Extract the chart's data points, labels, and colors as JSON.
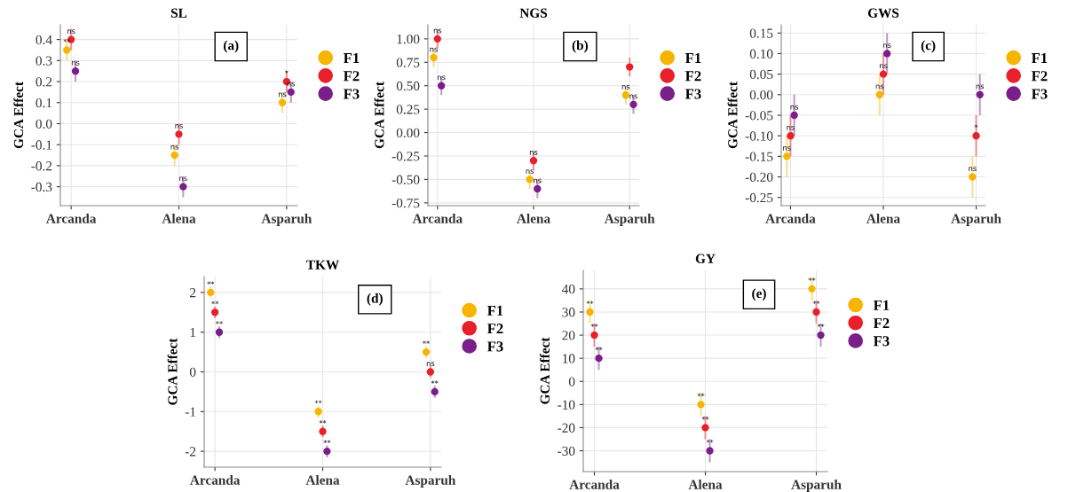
{
  "chart_data": [
    {
      "type": "scatter",
      "title": "SL",
      "ylabel": "GCA Effect",
      "categories": [
        "Arcanda",
        "Alena",
        "Asparuh"
      ],
      "ylim": [
        -0.39,
        0.47
      ],
      "yticks": [
        -0.3,
        -0.2,
        -0.1,
        {
          "value": 0,
          "label": "0.0"
        },
        0.1,
        0.2,
        0.3,
        0.4
      ],
      "grid": true,
      "legend": "right",
      "marker": "circle",
      "series": [
        {
          "name": "F1",
          "color": "#f7b500",
          "values": [
            0.35,
            -0.15,
            0.1
          ],
          "errors": [
            0.05,
            0.05,
            0.05
          ]
        },
        {
          "name": "F2",
          "color": "#e8202a",
          "values": [
            0.4,
            -0.05,
            0.2
          ],
          "errors": [
            0.05,
            0.05,
            0.05
          ]
        },
        {
          "name": "F3",
          "color": "#7a1f8a",
          "values": [
            0.25,
            -0.3,
            0.15
          ],
          "errors": [
            0.05,
            0.05,
            0.05
          ]
        }
      ],
      "annotations": [
        "(a)",
        {
          "text": "**",
          "x": "Arcanda",
          "y": 0.35
        },
        {
          "text": "ns",
          "x": "Arcanda",
          "y": 0.4
        },
        {
          "text": "ns",
          "x": "Arcanda",
          "y": 0.25
        },
        {
          "text": "ns",
          "x": "Alena",
          "y": -0.15
        },
        {
          "text": "ns",
          "x": "Alena",
          "y": -0.05
        },
        {
          "text": "ns",
          "x": "Alena",
          "y": -0.3
        },
        {
          "text": "ns",
          "x": "Asparuh",
          "y": 0.1
        },
        {
          "text": "*",
          "x": "Asparuh",
          "y": 0.2
        },
        {
          "text": "ns",
          "x": "Asparuh",
          "y": 0.15
        }
      ]
    },
    {
      "type": "scatter",
      "title": "NGS",
      "ylabel": "GCA Effect",
      "categories": [
        "Arcanda",
        "Alena",
        "Asparuh"
      ],
      "ylim": [
        -0.78,
        1.15
      ],
      "yticks": [
        -0.75,
        {
          "value": -0.5,
          "label": "-0.50"
        },
        -0.25,
        {
          "value": 0,
          "label": "0.00"
        },
        0.25,
        {
          "value": 0.5,
          "label": "0.50"
        },
        0.75,
        {
          "value": 1,
          "label": "1.00"
        }
      ],
      "grid": true,
      "legend": "right",
      "marker": "circle",
      "series": [
        {
          "name": "F1",
          "color": "#f7b500",
          "values": [
            0.8,
            -0.5,
            0.4
          ],
          "errors": [
            0.1,
            0.1,
            0.1
          ]
        },
        {
          "name": "F2",
          "color": "#e8202a",
          "values": [
            1.0,
            -0.3,
            0.7
          ],
          "errors": [
            0.1,
            0.1,
            0.1
          ]
        },
        {
          "name": "F3",
          "color": "#7a1f8a",
          "values": [
            0.5,
            -0.6,
            0.3
          ],
          "errors": [
            0.1,
            0.1,
            0.1
          ]
        }
      ],
      "annotations": [
        "(b)",
        {
          "text": "ns",
          "x": "Arcanda",
          "y": 0.8
        },
        {
          "text": "ns",
          "x": "Arcanda",
          "y": 1.0
        },
        {
          "text": "ns",
          "x": "Arcanda",
          "y": 0.5
        },
        {
          "text": "ns",
          "x": "Alena",
          "y": -0.5
        },
        {
          "text": "ns",
          "x": "Alena",
          "y": -0.3
        },
        {
          "text": "ns",
          "x": "Alena",
          "y": -0.6
        },
        {
          "text": "ns",
          "x": "Asparuh",
          "y": 0.4
        },
        {
          "text": "ns",
          "x": "Asparuh",
          "y": 0.3
        }
      ]
    },
    {
      "type": "scatter",
      "title": "GWS",
      "ylabel": "GCA Effect",
      "categories": [
        "Arcanda",
        "Alena",
        "Asparuh"
      ],
      "ylim": [
        -0.27,
        0.17
      ],
      "yticks": [
        -0.25,
        {
          "value": -0.2,
          "label": "-0.20"
        },
        -0.15,
        {
          "value": -0.1,
          "label": "-0.10"
        },
        -0.05,
        {
          "value": 0,
          "label": "0.00"
        },
        0.05,
        {
          "value": 0.1,
          "label": "0.10"
        },
        0.15
      ],
      "grid": true,
      "legend": "right",
      "marker": "circle",
      "series": [
        {
          "name": "F1",
          "color": "#f7b500",
          "values": [
            -0.15,
            0.0,
            -0.2
          ],
          "errors": [
            0.05,
            0.05,
            0.05
          ]
        },
        {
          "name": "F2",
          "color": "#e8202a",
          "values": [
            -0.1,
            0.05,
            -0.1
          ],
          "errors": [
            0.05,
            0.05,
            0.05
          ]
        },
        {
          "name": "F3",
          "color": "#7a1f8a",
          "values": [
            -0.05,
            0.1,
            0.0
          ],
          "errors": [
            0.05,
            0.05,
            0.05
          ]
        }
      ],
      "annotations": [
        "(c)",
        {
          "text": "ns",
          "x": "Arcanda",
          "y": -0.15
        },
        {
          "text": "ns",
          "x": "Arcanda",
          "y": -0.1
        },
        {
          "text": "ns",
          "x": "Arcanda",
          "y": -0.05
        },
        {
          "text": "ns",
          "x": "Alena",
          "y": 0.0
        },
        {
          "text": "ns",
          "x": "Alena",
          "y": 0.05
        },
        {
          "text": "ns",
          "x": "Alena",
          "y": 0.1
        },
        {
          "text": "ns",
          "x": "Asparuh",
          "y": -0.2
        },
        {
          "text": "*",
          "x": "Asparuh",
          "y": -0.1
        },
        {
          "text": "ns",
          "x": "Asparuh",
          "y": 0.0
        }
      ]
    },
    {
      "type": "scatter",
      "title": "TKW",
      "ylabel": "GCA Effect",
      "categories": [
        "Arcanda",
        "Alena",
        "Asparuh"
      ],
      "ylim": [
        -2.4,
        2.4
      ],
      "yticks": [
        -2,
        -1,
        0,
        1,
        2
      ],
      "grid": true,
      "legend": "right",
      "marker": "circle",
      "series": [
        {
          "name": "F1",
          "color": "#f7b500",
          "values": [
            2,
            -1,
            0.5
          ],
          "errors": [
            0.15,
            0.15,
            0.15
          ]
        },
        {
          "name": "F2",
          "color": "#e8202a",
          "values": [
            1.5,
            -1.5,
            0
          ],
          "errors": [
            0.15,
            0.15,
            0.15
          ]
        },
        {
          "name": "F3",
          "color": "#7a1f8a",
          "values": [
            1,
            -2,
            -0.5
          ],
          "errors": [
            0.15,
            0.15,
            0.15
          ]
        }
      ],
      "annotations": [
        "(d)",
        {
          "text": "**",
          "x": "Arcanda",
          "y": 2
        },
        {
          "text": "**",
          "x": "Arcanda",
          "y": 1.5
        },
        {
          "text": "**",
          "x": "Arcanda",
          "y": 1
        },
        {
          "text": "**",
          "x": "Alena",
          "y": -1
        },
        {
          "text": "**",
          "x": "Alena",
          "y": -1.5
        },
        {
          "text": "**",
          "x": "Alena",
          "y": -2
        },
        {
          "text": "**",
          "x": "Asparuh",
          "y": 0.5
        },
        {
          "text": "ns",
          "x": "Asparuh",
          "y": 0
        },
        {
          "text": "**",
          "x": "Asparuh",
          "y": -0.5
        }
      ]
    },
    {
      "type": "scatter",
      "title": "GY",
      "ylabel": "GCA Effect",
      "categories": [
        "Arcanda",
        "Alena",
        "Asparuh"
      ],
      "ylim": [
        -39,
        48
      ],
      "yticks": [
        -30,
        -20,
        -10,
        0,
        10,
        20,
        30,
        40
      ],
      "grid": true,
      "legend": "right",
      "marker": "circle",
      "series": [
        {
          "name": "F1",
          "color": "#f7b500",
          "values": [
            30,
            -10,
            40
          ],
          "errors": [
            5,
            5,
            5
          ]
        },
        {
          "name": "F2",
          "color": "#e8202a",
          "values": [
            20,
            -20,
            30
          ],
          "errors": [
            5,
            5,
            5
          ]
        },
        {
          "name": "F3",
          "color": "#7a1f8a",
          "values": [
            10,
            -30,
            20
          ],
          "errors": [
            5,
            5,
            5
          ]
        }
      ],
      "annotations": [
        "(e)",
        {
          "text": "**",
          "x": "Arcanda",
          "y": 30
        },
        {
          "text": "**",
          "x": "Arcanda",
          "y": 20
        },
        {
          "text": "**",
          "x": "Arcanda",
          "y": 10
        },
        {
          "text": "**",
          "x": "Alena",
          "y": -10
        },
        {
          "text": "**",
          "x": "Alena",
          "y": -20
        },
        {
          "text": "**",
          "x": "Alena",
          "y": -30
        },
        {
          "text": "**",
          "x": "Asparuh",
          "y": 40
        },
        {
          "text": "**",
          "x": "Asparuh",
          "y": 30
        },
        {
          "text": "**",
          "x": "Asparuh",
          "y": 20
        }
      ]
    }
  ]
}
